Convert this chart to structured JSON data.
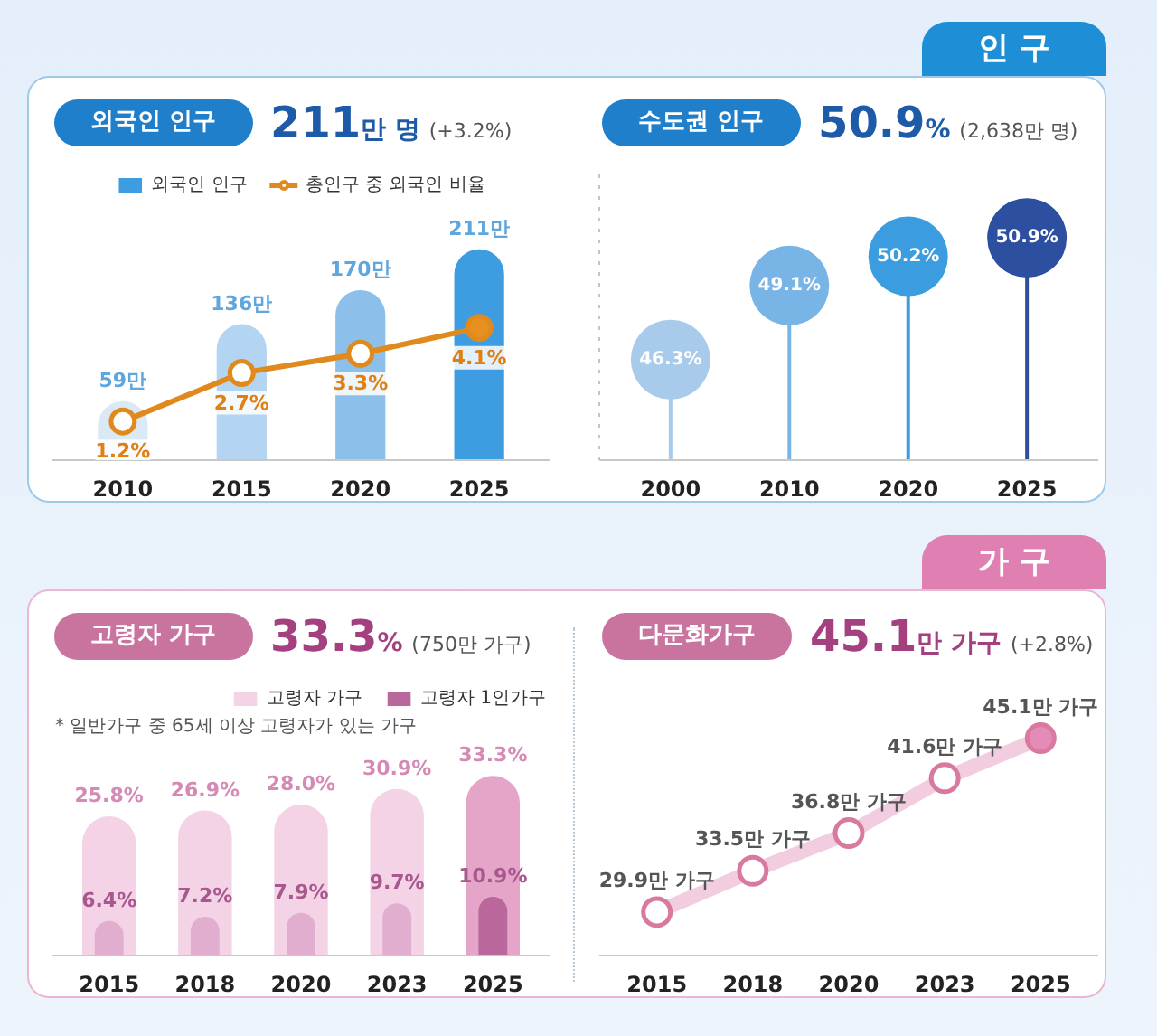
{
  "chart_data": [
    {
      "type": "bar",
      "title": "외국인 인구",
      "subtitle": "211만 명 (+3.2%)",
      "categories": [
        "2010",
        "2015",
        "2020",
        "2025"
      ],
      "series": [
        {
          "name": "외국인 인구",
          "type": "bar",
          "color": "#3e9ce0",
          "colors": [
            "#dbe9f6",
            "#b4d5f1",
            "#8cc0ea",
            "#3e9ce0"
          ],
          "values": [
            59,
            136,
            170,
            211
          ],
          "value_labels": [
            "59만",
            "136만",
            "170만",
            "211만"
          ]
        },
        {
          "name": "총인구 중 외국인 비율",
          "type": "line",
          "axis": "y2",
          "color": "#e08a1e",
          "colors": [
            "#ffffff",
            "#ffffff",
            "#ffffff",
            "#e8901f"
          ],
          "marker": "circle",
          "values": [
            1.2,
            2.7,
            3.3,
            4.1
          ],
          "value_labels": [
            "1.2%",
            "2.7%",
            "3.3%",
            "4.1%"
          ]
        }
      ],
      "legend": "top",
      "tick_labels": "x"
    },
    {
      "type": "lollipop",
      "title": "수도권 인구",
      "subtitle": "50.9% (2,638만 명)",
      "categories": [
        "2000",
        "2010",
        "2020",
        "2025"
      ],
      "values": [
        46.3,
        49.1,
        50.2,
        50.9
      ],
      "colors": [
        "#a8cbec",
        "#78b5e6",
        "#3b9de0",
        "#2c4f9f"
      ],
      "value_labels": [
        "46.3%",
        "49.1%",
        "50.2%",
        "50.9%"
      ],
      "ylim": [
        42.5,
        53.5
      ],
      "tick_labels": "x",
      "annotations": [
        "인 구"
      ]
    },
    {
      "type": "bar",
      "title": "고령자 가구",
      "subtitle": "33.3% (750만 가구)",
      "categories": [
        "2015",
        "2018",
        "2020",
        "2023",
        "2025"
      ],
      "series": [
        {
          "name": "고령자 가구",
          "color": "#f3d3e5",
          "colors": [
            "#f3d3e5",
            "#f3d3e5",
            "#f3d3e5",
            "#f3d3e5",
            "#e4a5c9"
          ],
          "values": [
            25.8,
            26.9,
            28.0,
            30.9,
            33.3
          ],
          "value_labels": [
            "25.8%",
            "26.9%",
            "28.0%",
            "30.9%",
            "33.3%"
          ]
        },
        {
          "name": "고령자 1인가구",
          "color": "#b9679c",
          "colors": [
            "#e2aed0",
            "#e2aed0",
            "#e2aed0",
            "#e2aed0",
            "#b9679c"
          ],
          "values": [
            6.4,
            7.2,
            7.9,
            9.7,
            10.9
          ],
          "value_labels": [
            "6.4%",
            "7.2%",
            "7.9%",
            "9.7%",
            "10.9%"
          ]
        }
      ],
      "legend": "top right",
      "tick_labels": "x",
      "annotations": [
        "* 일반가구 중 65세 이상 고령자가 있는 가구"
      ]
    },
    {
      "type": "line",
      "title": "다문화가구",
      "subtitle": "45.1만 가구 (+2.8%)",
      "categories": [
        "2015",
        "2018",
        "2020",
        "2023",
        "2025"
      ],
      "series": [
        {
          "color": "#f2cde0",
          "colors": [
            "#ffffff",
            "#ffffff",
            "#ffffff",
            "#ffffff",
            "#e48bb7"
          ],
          "marker": "circle",
          "values": [
            29.9,
            33.5,
            36.8,
            41.6,
            45.1
          ],
          "value_labels": [
            "29.9만 가구",
            "33.5만 가구",
            "36.8만 가구",
            "41.6만 가구",
            "45.1만 가구"
          ]
        }
      ],
      "tick_labels": "x",
      "annotations": [
        "가 구"
      ]
    }
  ]
}
